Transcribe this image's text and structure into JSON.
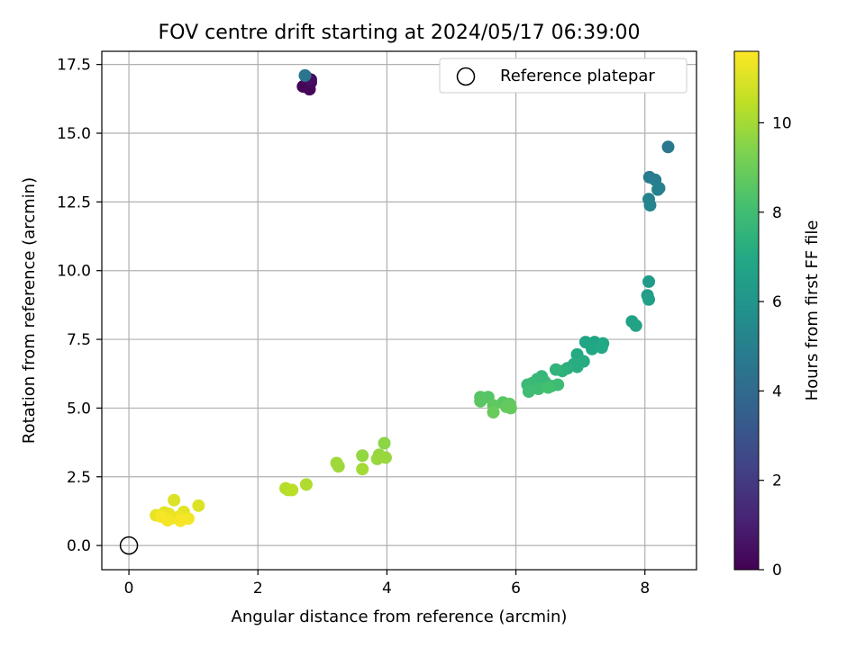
{
  "chart_data": {
    "type": "scatter",
    "title": "FOV centre drift starting at 2024/05/17 06:39:00",
    "xlabel": "Angular distance from reference (arcmin)",
    "ylabel": "Rotation from reference (arcmin)",
    "xlim": [
      -0.42,
      8.8
    ],
    "ylim": [
      -0.88,
      17.98
    ],
    "x_ticks": [
      0,
      2,
      4,
      6,
      8
    ],
    "y_ticks": [
      0.0,
      2.5,
      5.0,
      7.5,
      10.0,
      12.5,
      15.0,
      17.5
    ],
    "grid": true,
    "legend": {
      "placement": "top-right",
      "entries": [
        "Reference platepar"
      ]
    },
    "reference": {
      "x": 0,
      "y": 0
    },
    "colorbar": {
      "label": "Hours from first FF file",
      "colormap": "viridis",
      "range": [
        0,
        11.6
      ],
      "ticks": [
        0,
        2,
        4,
        6,
        8,
        10
      ]
    },
    "points": [
      {
        "x": 2.7,
        "y": 16.7,
        "t": 0.1
      },
      {
        "x": 2.8,
        "y": 16.6,
        "t": 0.2
      },
      {
        "x": 2.82,
        "y": 16.85,
        "t": 0.3
      },
      {
        "x": 2.82,
        "y": 16.95,
        "t": 0.4
      },
      {
        "x": 2.75,
        "y": 17.05,
        "t": 0.5
      },
      {
        "x": 2.73,
        "y": 17.1,
        "t": 4.5
      },
      {
        "x": 8.36,
        "y": 14.5,
        "t": 4.6
      },
      {
        "x": 8.07,
        "y": 13.4,
        "t": 4.8
      },
      {
        "x": 8.16,
        "y": 13.3,
        "t": 4.9
      },
      {
        "x": 8.22,
        "y": 13.0,
        "t": 5.0
      },
      {
        "x": 8.2,
        "y": 12.95,
        "t": 5.0
      },
      {
        "x": 8.06,
        "y": 12.6,
        "t": 5.1
      },
      {
        "x": 8.08,
        "y": 12.38,
        "t": 5.2
      },
      {
        "x": 8.06,
        "y": 9.6,
        "t": 6.3
      },
      {
        "x": 8.04,
        "y": 9.1,
        "t": 6.4
      },
      {
        "x": 8.06,
        "y": 8.95,
        "t": 6.5
      },
      {
        "x": 7.8,
        "y": 8.15,
        "t": 6.6
      },
      {
        "x": 7.86,
        "y": 8.0,
        "t": 6.7
      },
      {
        "x": 7.08,
        "y": 7.4,
        "t": 6.8
      },
      {
        "x": 7.22,
        "y": 7.4,
        "t": 6.8
      },
      {
        "x": 7.35,
        "y": 7.35,
        "t": 6.9
      },
      {
        "x": 7.18,
        "y": 7.15,
        "t": 6.9
      },
      {
        "x": 7.33,
        "y": 7.2,
        "t": 7.0
      },
      {
        "x": 6.95,
        "y": 6.95,
        "t": 7.0
      },
      {
        "x": 7.05,
        "y": 6.7,
        "t": 7.1
      },
      {
        "x": 6.9,
        "y": 6.6,
        "t": 7.2
      },
      {
        "x": 6.95,
        "y": 6.5,
        "t": 7.2
      },
      {
        "x": 6.8,
        "y": 6.45,
        "t": 7.3
      },
      {
        "x": 6.72,
        "y": 6.35,
        "t": 7.4
      },
      {
        "x": 6.62,
        "y": 6.4,
        "t": 7.5
      },
      {
        "x": 6.4,
        "y": 6.15,
        "t": 7.6
      },
      {
        "x": 6.33,
        "y": 6.05,
        "t": 7.7
      },
      {
        "x": 6.45,
        "y": 5.95,
        "t": 7.7
      },
      {
        "x": 6.25,
        "y": 5.9,
        "t": 7.8
      },
      {
        "x": 6.18,
        "y": 5.85,
        "t": 7.8
      },
      {
        "x": 6.65,
        "y": 5.85,
        "t": 7.9
      },
      {
        "x": 6.55,
        "y": 5.8,
        "t": 7.9
      },
      {
        "x": 6.35,
        "y": 5.7,
        "t": 8.0
      },
      {
        "x": 6.2,
        "y": 5.6,
        "t": 8.0
      },
      {
        "x": 6.5,
        "y": 5.75,
        "t": 8.1
      },
      {
        "x": 5.45,
        "y": 5.4,
        "t": 8.5
      },
      {
        "x": 5.57,
        "y": 5.4,
        "t": 8.5
      },
      {
        "x": 5.45,
        "y": 5.25,
        "t": 8.6
      },
      {
        "x": 5.8,
        "y": 5.2,
        "t": 8.6
      },
      {
        "x": 5.9,
        "y": 5.15,
        "t": 8.7
      },
      {
        "x": 5.65,
        "y": 5.1,
        "t": 8.7
      },
      {
        "x": 5.85,
        "y": 5.05,
        "t": 8.8
      },
      {
        "x": 5.92,
        "y": 5.0,
        "t": 8.8
      },
      {
        "x": 5.65,
        "y": 4.85,
        "t": 8.9
      },
      {
        "x": 3.96,
        "y": 3.72,
        "t": 9.6
      },
      {
        "x": 3.88,
        "y": 3.3,
        "t": 9.7
      },
      {
        "x": 3.62,
        "y": 3.27,
        "t": 9.7
      },
      {
        "x": 3.85,
        "y": 3.15,
        "t": 9.8
      },
      {
        "x": 3.98,
        "y": 3.2,
        "t": 9.8
      },
      {
        "x": 3.22,
        "y": 3.0,
        "t": 9.9
      },
      {
        "x": 3.25,
        "y": 2.88,
        "t": 9.9
      },
      {
        "x": 3.62,
        "y": 2.78,
        "t": 10.0
      },
      {
        "x": 2.75,
        "y": 2.22,
        "t": 10.2
      },
      {
        "x": 2.43,
        "y": 2.08,
        "t": 10.3
      },
      {
        "x": 2.47,
        "y": 2.02,
        "t": 10.3
      },
      {
        "x": 2.53,
        "y": 2.02,
        "t": 10.4
      },
      {
        "x": 0.7,
        "y": 1.65,
        "t": 11.0
      },
      {
        "x": 1.08,
        "y": 1.45,
        "t": 11.0
      },
      {
        "x": 0.85,
        "y": 1.22,
        "t": 11.1
      },
      {
        "x": 0.55,
        "y": 1.2,
        "t": 11.1
      },
      {
        "x": 0.42,
        "y": 1.1,
        "t": 11.2
      },
      {
        "x": 0.62,
        "y": 1.15,
        "t": 11.2
      },
      {
        "x": 0.78,
        "y": 1.05,
        "t": 11.3
      },
      {
        "x": 0.68,
        "y": 1.0,
        "t": 11.3
      },
      {
        "x": 0.92,
        "y": 0.98,
        "t": 11.4
      },
      {
        "x": 0.6,
        "y": 0.92,
        "t": 11.4
      },
      {
        "x": 0.8,
        "y": 0.9,
        "t": 11.5
      },
      {
        "x": 0.5,
        "y": 1.05,
        "t": 11.5
      }
    ]
  }
}
